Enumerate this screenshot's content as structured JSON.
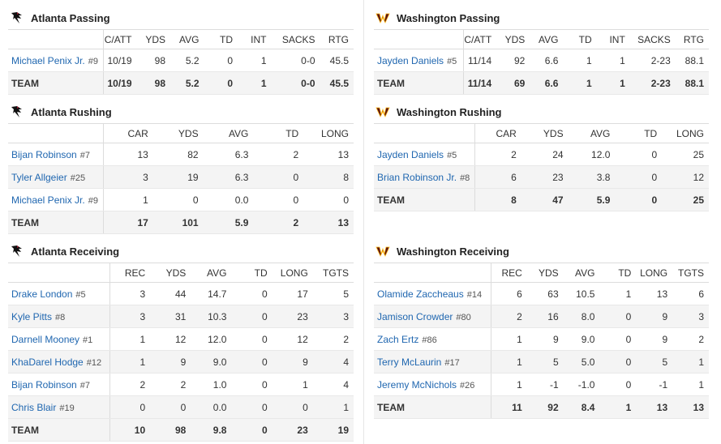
{
  "atl_passing": {
    "title": "Atlanta Passing",
    "columns": [
      "",
      "C/ATT",
      "YDS",
      "AVG",
      "TD",
      "INT",
      "SACKS",
      "RTG"
    ],
    "rows": [
      {
        "name": "Michael Penix Jr.",
        "num": "#9",
        "stats": [
          "10/19",
          "98",
          "5.2",
          "0",
          "1",
          "0-0",
          "45.5"
        ]
      }
    ],
    "team": {
      "label": "TEAM",
      "stats": [
        "10/19",
        "98",
        "5.2",
        "0",
        "1",
        "0-0",
        "45.5"
      ]
    }
  },
  "atl_rushing": {
    "title": "Atlanta Rushing",
    "columns": [
      "",
      "CAR",
      "YDS",
      "AVG",
      "TD",
      "LONG"
    ],
    "rows": [
      {
        "name": "Bijan Robinson",
        "num": "#7",
        "stats": [
          "13",
          "82",
          "6.3",
          "2",
          "13"
        ]
      },
      {
        "name": "Tyler Allgeier",
        "num": "#25",
        "stats": [
          "3",
          "19",
          "6.3",
          "0",
          "8"
        ]
      },
      {
        "name": "Michael Penix Jr.",
        "num": "#9",
        "stats": [
          "1",
          "0",
          "0.0",
          "0",
          "0"
        ]
      }
    ],
    "team": {
      "label": "TEAM",
      "stats": [
        "17",
        "101",
        "5.9",
        "2",
        "13"
      ]
    }
  },
  "atl_receiving": {
    "title": "Atlanta Receiving",
    "columns": [
      "",
      "REC",
      "YDS",
      "AVG",
      "TD",
      "LONG",
      "TGTS"
    ],
    "rows": [
      {
        "name": "Drake London",
        "num": "#5",
        "stats": [
          "3",
          "44",
          "14.7",
          "0",
          "17",
          "5"
        ]
      },
      {
        "name": "Kyle Pitts",
        "num": "#8",
        "stats": [
          "3",
          "31",
          "10.3",
          "0",
          "23",
          "3"
        ]
      },
      {
        "name": "Darnell Mooney",
        "num": "#1",
        "stats": [
          "1",
          "12",
          "12.0",
          "0",
          "12",
          "2"
        ]
      },
      {
        "name": "KhaDarel Hodge",
        "num": "#12",
        "stats": [
          "1",
          "9",
          "9.0",
          "0",
          "9",
          "4"
        ]
      },
      {
        "name": "Bijan Robinson",
        "num": "#7",
        "stats": [
          "2",
          "2",
          "1.0",
          "0",
          "1",
          "4"
        ]
      },
      {
        "name": "Chris Blair",
        "num": "#19",
        "stats": [
          "0",
          "0",
          "0.0",
          "0",
          "0",
          "1"
        ]
      }
    ],
    "team": {
      "label": "TEAM",
      "stats": [
        "10",
        "98",
        "9.8",
        "0",
        "23",
        "19"
      ]
    }
  },
  "was_passing": {
    "title": "Washington Passing",
    "columns": [
      "",
      "C/ATT",
      "YDS",
      "AVG",
      "TD",
      "INT",
      "SACKS",
      "RTG"
    ],
    "rows": [
      {
        "name": "Jayden Daniels",
        "num": "#5",
        "stats": [
          "11/14",
          "92",
          "6.6",
          "1",
          "1",
          "2-23",
          "88.1"
        ]
      }
    ],
    "team": {
      "label": "TEAM",
      "stats": [
        "11/14",
        "69",
        "6.6",
        "1",
        "1",
        "2-23",
        "88.1"
      ]
    }
  },
  "was_rushing": {
    "title": "Washington Rushing",
    "columns": [
      "",
      "CAR",
      "YDS",
      "AVG",
      "TD",
      "LONG"
    ],
    "rows": [
      {
        "name": "Jayden Daniels",
        "num": "#5",
        "stats": [
          "2",
          "24",
          "12.0",
          "0",
          "25"
        ]
      },
      {
        "name": "Brian Robinson Jr.",
        "num": "#8",
        "stats": [
          "6",
          "23",
          "3.8",
          "0",
          "12"
        ]
      }
    ],
    "team": {
      "label": "TEAM",
      "stats": [
        "8",
        "47",
        "5.9",
        "0",
        "25"
      ]
    }
  },
  "was_receiving": {
    "title": "Washington Receiving",
    "columns": [
      "",
      "REC",
      "YDS",
      "AVG",
      "TD",
      "LONG",
      "TGTS"
    ],
    "rows": [
      {
        "name": "Olamide Zaccheaus",
        "num": "#14",
        "stats": [
          "6",
          "63",
          "10.5",
          "1",
          "13",
          "6"
        ]
      },
      {
        "name": "Jamison Crowder",
        "num": "#80",
        "stats": [
          "2",
          "16",
          "8.0",
          "0",
          "9",
          "3"
        ]
      },
      {
        "name": "Zach Ertz",
        "num": "#86",
        "stats": [
          "1",
          "9",
          "9.0",
          "0",
          "9",
          "2"
        ]
      },
      {
        "name": "Terry McLaurin",
        "num": "#17",
        "stats": [
          "1",
          "5",
          "5.0",
          "0",
          "5",
          "1"
        ]
      },
      {
        "name": "Jeremy McNichols",
        "num": "#26",
        "stats": [
          "1",
          "-1",
          "-1.0",
          "0",
          "-1",
          "1"
        ]
      }
    ],
    "team": {
      "label": "TEAM",
      "stats": [
        "11",
        "92",
        "8.4",
        "1",
        "13",
        "13"
      ]
    }
  },
  "colors": {
    "link": "#2067b0",
    "falcons_red": "#a71930",
    "commanders_burgundy": "#5a1414",
    "commanders_gold": "#ffb612"
  },
  "icons": {
    "atlanta": "falcons-logo-icon",
    "washington": "commanders-logo-icon"
  }
}
